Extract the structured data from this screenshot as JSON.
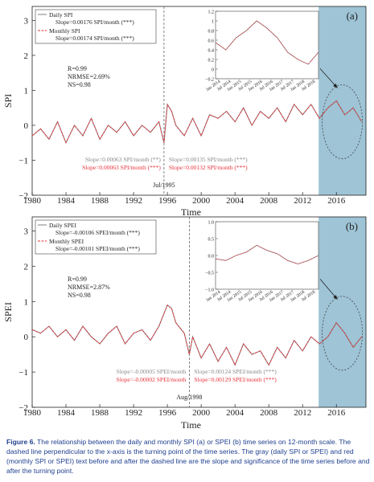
{
  "figure": {
    "caption_label": "Figure 6.",
    "caption_text": " The relationship between the daily and monthly SPI (a) or SPEI (b) time series on 12-month scale. The dashed line perpendicular to the x-axis is the turning point of the time series. The gray (daily SPI or SPEI) and red (monthly SPI or SPEI) text before and after the dashed line are the slope and significance of the time series before and after the turning point."
  },
  "colors": {
    "daily": "#7f7f7f",
    "monthly": "#e8323a",
    "shade": "#9ec4d6",
    "axis": "#222222"
  },
  "chart_data": [
    {
      "panel_label": "(a)",
      "type": "line",
      "xlabel": "Time",
      "ylabel": "SPI",
      "xlim": [
        1980,
        2019.5
      ],
      "ylim": [
        -2,
        3.4
      ],
      "xticks": [
        1980,
        1984,
        1988,
        1992,
        1996,
        2000,
        2004,
        2008,
        2012,
        2016
      ],
      "yticks": [
        -2,
        -1,
        0,
        1,
        2,
        3
      ],
      "turning_point": {
        "x": 1995.6,
        "label": "Jul/1995"
      },
      "shaded_region": [
        2013.9,
        2019.5
      ],
      "legend": [
        {
          "name": "Daily SPI",
          "slope": "Slope=0.00176 SPI/month (***)"
        },
        {
          "name": "Monthly SPI",
          "slope": "Slope=0.00174 SPI/month (***)"
        }
      ],
      "stats": [
        "R=0.99",
        "NRMSE=2.69%",
        "NS=0.98"
      ],
      "slope_texts": {
        "before_daily": "Slope=0.00063 SPI/month (**)",
        "before_monthly": "Slope=0.00063 SPI/month (***)",
        "after_daily": "Slope=0.00135 SPI/month (***)",
        "after_monthly": "Slope=0.00132 SPI/month (***)"
      },
      "x": [
        1980,
        1981,
        1982,
        1983,
        1984,
        1985,
        1986,
        1987,
        1988,
        1989,
        1990,
        1991,
        1992,
        1993,
        1994,
        1995,
        1995.6,
        1996,
        1996.5,
        1997,
        1998,
        1999,
        2000,
        2001,
        2002,
        2003,
        2004,
        2005,
        2006,
        2007,
        2008,
        2009,
        2010,
        2011,
        2012,
        2013,
        2014,
        2015,
        2016,
        2017,
        2018,
        2019
      ],
      "series": [
        {
          "name": "Daily SPI",
          "values": [
            -0.3,
            -0.1,
            -0.4,
            0.1,
            -0.5,
            0.0,
            -0.3,
            0.2,
            -0.4,
            0.0,
            -0.2,
            0.1,
            -0.3,
            0.0,
            -0.2,
            0.1,
            -0.5,
            0.6,
            0.4,
            0.0,
            -0.3,
            0.2,
            -0.3,
            0.3,
            0.2,
            0.4,
            0.1,
            0.5,
            0.0,
            0.4,
            0.2,
            0.5,
            0.1,
            0.6,
            0.3,
            0.6,
            0.2,
            0.5,
            0.7,
            0.3,
            0.5,
            0.1
          ]
        },
        {
          "name": "Monthly SPI",
          "values": [
            -0.3,
            -0.1,
            -0.4,
            0.1,
            -0.5,
            0.0,
            -0.3,
            0.2,
            -0.4,
            0.0,
            -0.2,
            0.1,
            -0.3,
            0.0,
            -0.2,
            0.1,
            -0.5,
            0.6,
            0.4,
            0.0,
            -0.3,
            0.2,
            -0.3,
            0.3,
            0.2,
            0.4,
            0.1,
            0.5,
            0.0,
            0.4,
            0.2,
            0.5,
            0.1,
            0.6,
            0.3,
            0.6,
            0.2,
            0.5,
            0.7,
            0.3,
            0.5,
            0.1
          ]
        }
      ],
      "inset": {
        "ylim": [
          -0.2,
          1.2
        ],
        "yticks": [
          -0.2,
          0,
          0.2,
          0.4,
          0.6,
          0.8,
          1,
          1.2
        ],
        "ytick_labels": [
          "-0.2",
          "0",
          "0.2",
          "0.4",
          "0.6",
          "0.8",
          "1",
          "1.2"
        ],
        "xtick_labels": [
          "Jan 2014",
          "Jul 2014",
          "Jan 2015",
          "Jul 2015",
          "Jan 2016",
          "Jul 2016",
          "Jan 2017",
          "Jul 2017",
          "Jan 2018",
          "Jul 2018"
        ],
        "x": [
          2014,
          2014.5,
          2015,
          2015.5,
          2016,
          2016.5,
          2017,
          2017.5,
          2018,
          2018.5,
          2019
        ],
        "values": [
          0.55,
          0.4,
          0.65,
          0.8,
          1.0,
          0.85,
          0.65,
          0.35,
          0.2,
          0.1,
          0.35
        ]
      }
    },
    {
      "panel_label": "(b)",
      "type": "line",
      "xlabel": "Time",
      "ylabel": "SPEI",
      "xlim": [
        1980,
        2019.5
      ],
      "ylim": [
        -2,
        3.4
      ],
      "xticks": [
        1980,
        1984,
        1988,
        1992,
        1996,
        2000,
        2004,
        2008,
        2012,
        2016
      ],
      "yticks": [
        -2,
        -1,
        0,
        1,
        2,
        3
      ],
      "turning_point": {
        "x": 1998.6,
        "label": "Aug/1998"
      },
      "shaded_region": [
        2013.9,
        2019.5
      ],
      "legend": [
        {
          "name": "Daily SPEI",
          "slope": "Slope=-0.00106 SPEI/month (***)"
        },
        {
          "name": "Monthly SPEI",
          "slope": "Slope=-0.00101 SPEI/month (***)"
        }
      ],
      "stats": [
        "R=0.99",
        "NRMSE=2.87%",
        "NS=0.98"
      ],
      "slope_texts": {
        "before_daily": "Slope=-0.00005 SPEI/month",
        "before_monthly": "Slope=-0.00002 SPEI/month",
        "after_daily": "Slope=0.00124 SPEI/month (***)",
        "after_monthly": "Slope=0.00129 SPEI/month (***)"
      },
      "x": [
        1980,
        1981,
        1982,
        1983,
        1984,
        1985,
        1986,
        1987,
        1988,
        1989,
        1990,
        1991,
        1992,
        1993,
        1994,
        1995,
        1996,
        1996.5,
        1997,
        1998,
        1998.6,
        1999,
        2000,
        2001,
        2002,
        2003,
        2004,
        2005,
        2006,
        2007,
        2008,
        2009,
        2010,
        2011,
        2012,
        2013,
        2014,
        2015,
        2016,
        2017,
        2018,
        2019
      ],
      "series": [
        {
          "name": "Daily SPEI",
          "values": [
            0.2,
            0.1,
            0.3,
            0.0,
            0.2,
            -0.1,
            0.3,
            0.0,
            -0.2,
            0.1,
            0.3,
            -0.2,
            0.1,
            0.2,
            -0.1,
            0.3,
            0.9,
            0.8,
            0.4,
            0.1,
            -0.5,
            0.0,
            -0.6,
            -0.2,
            -0.7,
            -0.3,
            -0.8,
            -0.2,
            -0.5,
            -0.4,
            -0.8,
            -0.3,
            -0.6,
            -0.1,
            -0.4,
            0.0,
            -0.2,
            0.0,
            0.4,
            0.1,
            -0.3,
            0.0
          ]
        },
        {
          "name": "Monthly SPEI",
          "values": [
            0.2,
            0.1,
            0.3,
            0.0,
            0.2,
            -0.1,
            0.3,
            0.0,
            -0.2,
            0.1,
            0.3,
            -0.2,
            0.1,
            0.2,
            -0.1,
            0.3,
            0.9,
            0.8,
            0.4,
            0.1,
            -0.5,
            0.0,
            -0.6,
            -0.2,
            -0.7,
            -0.3,
            -0.8,
            -0.2,
            -0.5,
            -0.4,
            -0.8,
            -0.3,
            -0.6,
            -0.1,
            -0.4,
            0.0,
            -0.2,
            0.0,
            0.4,
            0.1,
            -0.3,
            0.0
          ]
        }
      ],
      "inset": {
        "ylim": [
          -1.0,
          1.0
        ],
        "yticks": [
          -1,
          -0.5,
          0,
          0.5,
          1
        ],
        "ytick_labels": [
          "-1.0",
          "-0.5",
          "0.0",
          "0.5",
          "1.0"
        ],
        "xtick_labels": [
          "Jan 2014",
          "Jul 2014",
          "Jan 2015",
          "Jul 2015",
          "Jan 2016",
          "Jul 2016",
          "Jan 2017",
          "Jul 2017",
          "Jan 2018",
          "Jul 2018"
        ],
        "x": [
          2014,
          2014.5,
          2015,
          2015.5,
          2016,
          2016.5,
          2017,
          2017.5,
          2018,
          2018.5,
          2019
        ],
        "values": [
          -0.1,
          -0.15,
          0.0,
          0.1,
          0.3,
          0.15,
          0.05,
          -0.15,
          -0.25,
          -0.15,
          0.0
        ]
      }
    }
  ]
}
